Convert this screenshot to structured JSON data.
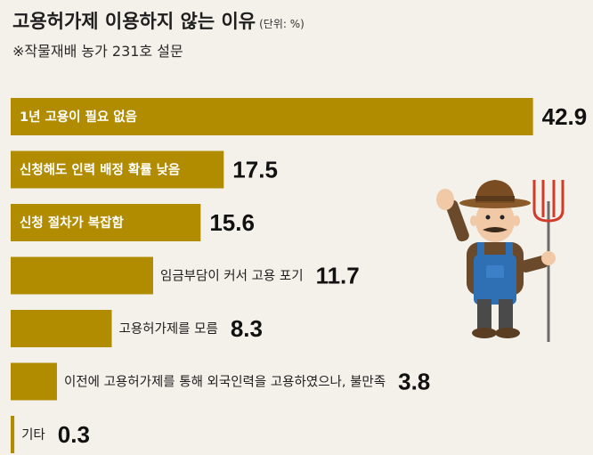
{
  "header": {
    "title": "고용허가제 이용하지 않는 이유",
    "unit": "(단위: %)",
    "subtitle": "※작물재배 농가 231호 설문"
  },
  "colors": {
    "bar": "#b18c00",
    "bar_label_light": "#ffffff",
    "bar_label_dark": "#1e1e1e",
    "value_text": "#111111"
  },
  "illustration": {
    "icon": "farmer-with-pitchfork-icon"
  },
  "chart_data": {
    "type": "bar",
    "orientation": "horizontal",
    "title": "고용허가제 이용하지 않는 이유",
    "unit": "(단위: %)",
    "categories": [
      "1년 고용이 필요 없음",
      "신청해도 인력 배정 확률 낮음",
      "신청 절차가 복잡함",
      "임금부담이 커서 고용 포기",
      "고용허가제를 모름",
      "이전에 고용허가제를 통해 외국인력을 고용하였으나, 불만족",
      "기타"
    ],
    "values": [
      42.9,
      17.5,
      15.6,
      11.7,
      8.3,
      3.8,
      0.3
    ],
    "value_labels": [
      "42.9",
      "17.5",
      "15.6",
      "11.7",
      "8.3",
      "3.8",
      "0.3"
    ],
    "xlim": [
      0,
      43
    ],
    "grid": false,
    "legend": "none"
  }
}
